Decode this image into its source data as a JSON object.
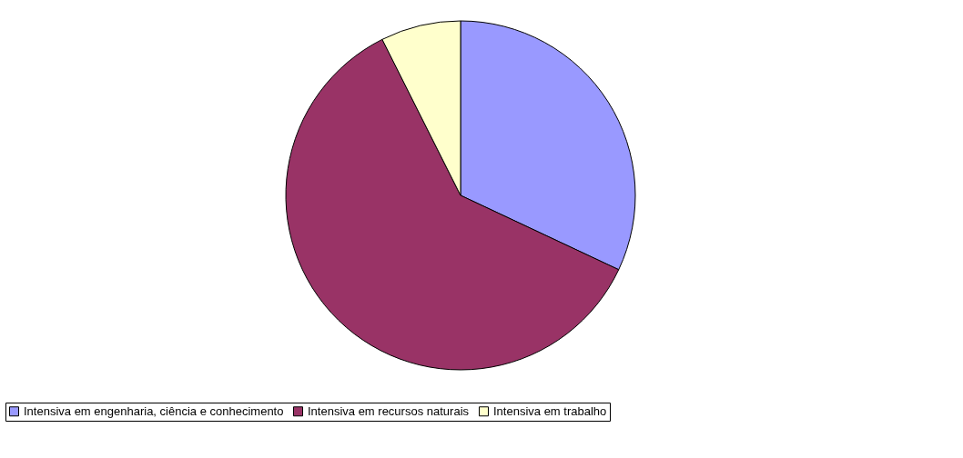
{
  "chart_data": {
    "type": "pie",
    "categories": [
      "Intensiva em engenharia, ciência e conhecimento",
      "Intensiva em recursos naturais",
      "Intensiva em trabalho"
    ],
    "values": [
      32,
      60.6,
      7.4
    ],
    "colors": [
      "#9999ff",
      "#993366",
      "#ffffcc"
    ],
    "legend": "bottom"
  }
}
